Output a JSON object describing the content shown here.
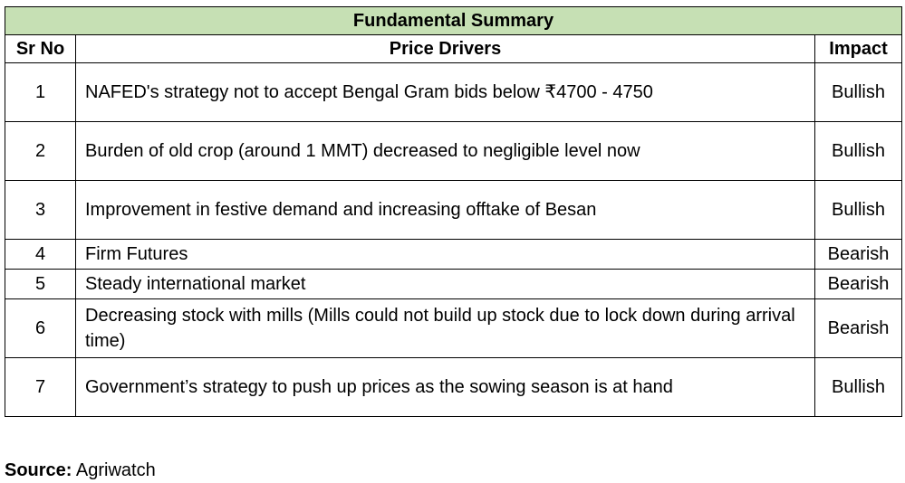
{
  "table": {
    "title": "Fundamental Summary",
    "headers": {
      "sr_no": "Sr No",
      "price_drivers": "Price Drivers",
      "impact": "Impact"
    },
    "rows": [
      {
        "sr": "1",
        "driver": "NAFED's strategy not to accept Bengal Gram bids below ₹4700 - 4750",
        "impact": "Bullish"
      },
      {
        "sr": "2",
        "driver": "Burden of old crop (around 1 MMT) decreased to negligible level now",
        "impact": "Bullish"
      },
      {
        "sr": "3",
        "driver": "Improvement in festive demand and increasing offtake of Besan",
        "impact": "Bullish"
      },
      {
        "sr": "4",
        "driver": "Firm Futures",
        "impact": "Bearish"
      },
      {
        "sr": "5",
        "driver": "Steady international market",
        "impact": "Bearish"
      },
      {
        "sr": "6",
        "driver": "Decreasing stock with mills (Mills could not build up stock due to lock down during arrival time)",
        "impact": "Bearish"
      },
      {
        "sr": "7",
        "driver": "Government’s strategy to push up prices as the sowing season is at hand",
        "impact": "Bullish"
      }
    ]
  },
  "source": {
    "label": "Source:",
    "value": "Agriwatch"
  },
  "colors": {
    "title_background": "#c6e0b4",
    "border": "#000000"
  }
}
